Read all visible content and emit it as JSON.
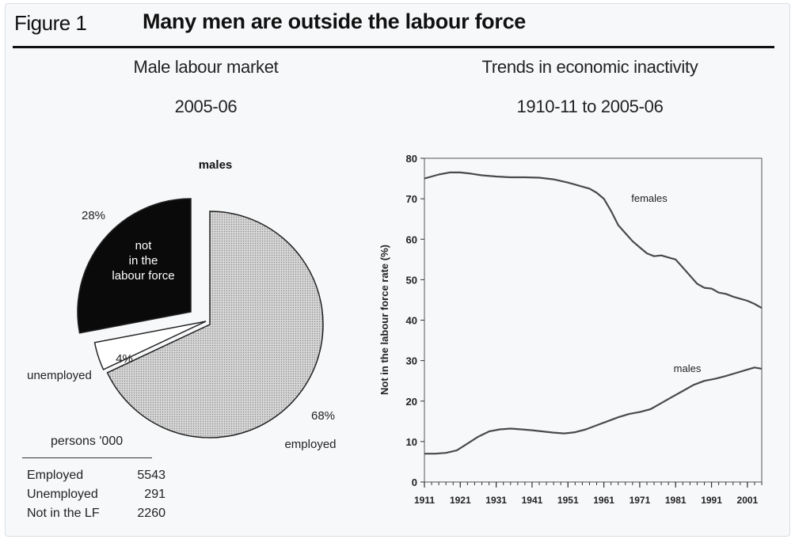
{
  "figure": {
    "label": "Figure 1",
    "title": "Many men are outside the labour force"
  },
  "left_panel": {
    "title_line1": "Male labour market",
    "title_line2": "2005-06",
    "pie_heading": "males",
    "table_header": "persons '000",
    "table_rows": [
      {
        "label": "Employed",
        "value": "5543"
      },
      {
        "label": "Unemployed",
        "value": "291"
      },
      {
        "label": "Not in the LF",
        "value": "2260"
      }
    ]
  },
  "right_panel": {
    "title_line1": "Trends in economic inactivity",
    "title_line2": "1910-11 to 2005-06"
  },
  "colors": {
    "employed_fill": "#cfcfcf",
    "not_in_lf_fill": "#0a0a0a",
    "unemployed_fill": "#ffffff",
    "line": "#4a4a4a"
  },
  "chart_data": [
    {
      "type": "pie",
      "title": "males",
      "slices": [
        {
          "label": "employed",
          "value": 68,
          "value_label": "68%",
          "fill": "#cfcfcf",
          "exploded": false
        },
        {
          "label": "unemployed",
          "value": 4,
          "value_label": "4%",
          "fill": "#ffffff",
          "exploded": true
        },
        {
          "label": "not in the labour force",
          "value": 28,
          "value_label": "28%",
          "fill": "#0a0a0a",
          "exploded": true
        }
      ]
    },
    {
      "type": "line",
      "title": "",
      "xlabel": "",
      "ylabel": "Not in the labour force rate (%)",
      "xlim": [
        1911,
        2005
      ],
      "ylim": [
        0,
        80
      ],
      "x_ticks": [
        1911,
        1921,
        1931,
        1941,
        1951,
        1961,
        1971,
        1981,
        1991,
        2001
      ],
      "y_ticks": [
        0,
        10,
        20,
        30,
        40,
        50,
        60,
        70,
        80
      ],
      "grid": false,
      "legend": "inline labels",
      "series": [
        {
          "name": "females",
          "x": [
            1911,
            1913,
            1915,
            1918,
            1921,
            1924,
            1927,
            1931,
            1935,
            1939,
            1943,
            1947,
            1951,
            1953,
            1955,
            1957,
            1959,
            1961,
            1963,
            1965,
            1967,
            1969,
            1971,
            1973,
            1975,
            1977,
            1979,
            1981,
            1983,
            1985,
            1987,
            1989,
            1991,
            1993,
            1995,
            1997,
            1999,
            2001,
            2003,
            2005
          ],
          "y": [
            75,
            75.5,
            76,
            76.5,
            76.5,
            76.2,
            75.8,
            75.5,
            75.3,
            75.3,
            75.2,
            74.8,
            74,
            73.5,
            73,
            72.5,
            71.5,
            70,
            67,
            63.5,
            61.5,
            59.5,
            58,
            56.5,
            55.8,
            56,
            55.5,
            55,
            53,
            51,
            49,
            48,
            47.8,
            46.8,
            46.5,
            45.8,
            45.3,
            44.8,
            44,
            43
          ]
        },
        {
          "name": "males",
          "x": [
            1911,
            1914,
            1917,
            1920,
            1923,
            1926,
            1929,
            1932,
            1935,
            1938,
            1941,
            1944,
            1947,
            1950,
            1953,
            1956,
            1959,
            1962,
            1965,
            1968,
            1971,
            1974,
            1977,
            1980,
            1983,
            1986,
            1989,
            1992,
            1995,
            1998,
            2001,
            2003,
            2005
          ],
          "y": [
            7,
            7,
            7.2,
            7.8,
            9.5,
            11.2,
            12.5,
            13,
            13.2,
            13,
            12.8,
            12.5,
            12.2,
            12,
            12.3,
            13,
            14,
            15,
            16,
            16.8,
            17.3,
            18,
            19.5,
            21,
            22.5,
            24,
            25,
            25.5,
            26.2,
            27,
            27.8,
            28.3,
            28
          ]
        }
      ]
    }
  ]
}
